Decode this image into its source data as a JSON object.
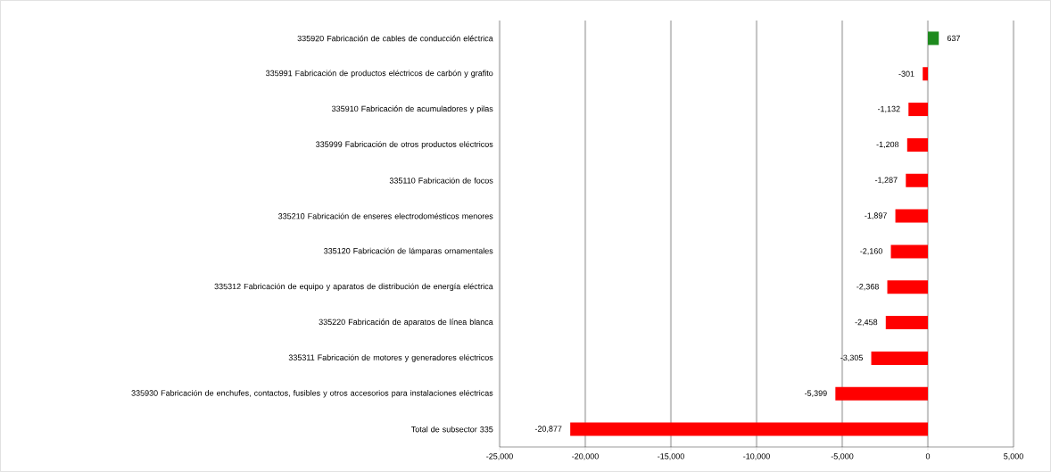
{
  "chart_data": {
    "type": "bar",
    "orientation": "horizontal",
    "categories": [
      "335920 Fabricación de cables de conducción eléctrica",
      "335991 Fabricación de productos eléctricos de carbón y grafito",
      "335910 Fabricación de acumuladores y pilas",
      "335999 Fabricación de otros productos eléctricos",
      "335110 Fabricación de focos",
      "335210 Fabricación de enseres electrodomésticos menores",
      "335120 Fabricación de lámparas ornamentales",
      "335312 Fabricación de equipo y aparatos de distribución de energía eléctrica",
      "335220 Fabricación de aparatos de línea blanca",
      "335311 Fabricación de motores y generadores eléctricos",
      "335930 Fabricación de enchufes, contactos, fusibles y otros accesorios para instalaciones eléctricas",
      "Total de subsector 335"
    ],
    "values": [
      637,
      -301,
      -1132,
      -1208,
      -1287,
      -1897,
      -2160,
      -2368,
      -2458,
      -3305,
      -5399,
      -20877
    ],
    "value_labels": [
      "637",
      "-301",
      "-1,132",
      "-1,208",
      "-1,287",
      "-1,897",
      "-2,160",
      "-2,368",
      "-2,458",
      "-3,305",
      "-5,399",
      "-20,877"
    ],
    "colors": [
      "#1e8a1e",
      "#ff0000",
      "#ff0000",
      "#ff0000",
      "#ff0000",
      "#ff0000",
      "#ff0000",
      "#ff0000",
      "#ff0000",
      "#ff0000",
      "#ff0000",
      "#ff0000"
    ],
    "xlim": [
      -25000,
      5000
    ],
    "xticks": [
      {
        "value": -25000,
        "label": "-25,000"
      },
      {
        "value": -20000,
        "label": "-20,000"
      },
      {
        "value": -15000,
        "label": "-15,000"
      },
      {
        "value": -10000,
        "label": "-10,000"
      },
      {
        "value": -5000,
        "label": "-5,000"
      },
      0,
      {
        "value": 5000,
        "label": "5,000"
      }
    ],
    "grid": "x"
  }
}
